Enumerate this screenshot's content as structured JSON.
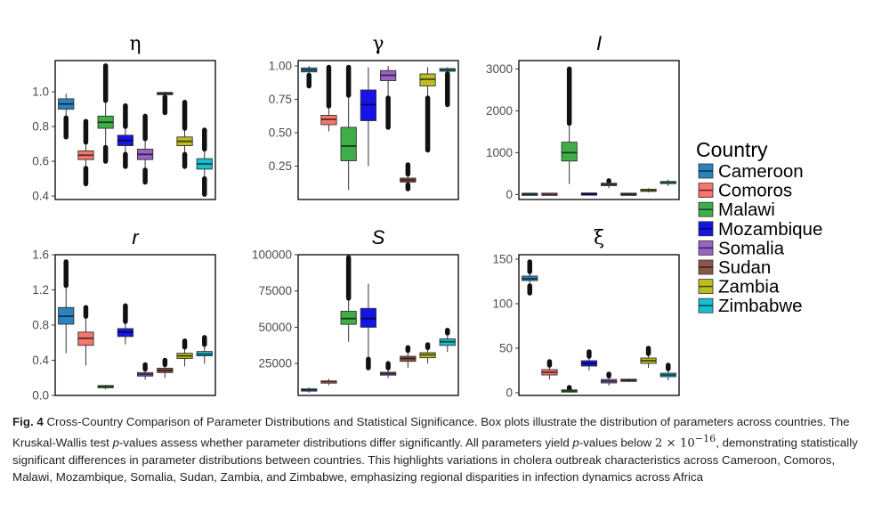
{
  "figure": {
    "legend": {
      "title": "Country",
      "entries": [
        {
          "name": "Cameroon",
          "color": "#2a83bf"
        },
        {
          "name": "Comoros",
          "color": "#f8766d"
        },
        {
          "name": "Malawi",
          "color": "#3fae49"
        },
        {
          "name": "Mozambique",
          "color": "#1414e6"
        },
        {
          "name": "Somalia",
          "color": "#9a63c6"
        },
        {
          "name": "Sudan",
          "color": "#8c564b"
        },
        {
          "name": "Zambia",
          "color": "#bcbd22"
        },
        {
          "name": "Zimbabwe",
          "color": "#17becf"
        }
      ]
    }
  },
  "chart_data": [
    {
      "type": "boxplot",
      "title": "η",
      "title_style": "serif-upright",
      "ylim": [
        0.38,
        1.18
      ],
      "ticks": [
        0.4,
        0.6,
        0.8,
        1.0
      ],
      "tick_labels": [
        "0.4",
        "0.6",
        "0.8",
        "1.0"
      ],
      "categories": [
        "Cameroon",
        "Comoros",
        "Malawi",
        "Mozambique",
        "Somalia",
        "Sudan",
        "Zambia",
        "Zimbabwe"
      ],
      "boxes": [
        {
          "min": 0.85,
          "q1": 0.9,
          "median": 0.93,
          "q3": 0.96,
          "max": 0.99,
          "out_low": 0.74,
          "out_high": null
        },
        {
          "min": 0.56,
          "q1": 0.61,
          "median": 0.635,
          "q3": 0.66,
          "max": 0.71,
          "out_low": 0.47,
          "out_high": 0.83
        },
        {
          "min": 0.68,
          "q1": 0.79,
          "median": 0.825,
          "q3": 0.86,
          "max": 0.95,
          "out_low": 0.6,
          "out_high": 1.15
        },
        {
          "min": 0.64,
          "q1": 0.69,
          "median": 0.72,
          "q3": 0.75,
          "max": 0.8,
          "out_low": 0.57,
          "out_high": 0.92
        },
        {
          "min": 0.55,
          "q1": 0.61,
          "median": 0.64,
          "q3": 0.67,
          "max": 0.73,
          "out_low": 0.48,
          "out_high": 0.86
        },
        {
          "min": 0.97,
          "q1": 0.985,
          "median": 0.99,
          "q3": 0.995,
          "max": 1.0,
          "out_low": 0.88,
          "out_high": null
        },
        {
          "min": 0.64,
          "q1": 0.69,
          "median": 0.715,
          "q3": 0.74,
          "max": 0.79,
          "out_low": 0.57,
          "out_high": 0.94
        },
        {
          "min": 0.5,
          "q1": 0.555,
          "median": 0.585,
          "q3": 0.615,
          "max": 0.67,
          "out_low": 0.41,
          "out_high": 0.78
        }
      ]
    },
    {
      "type": "boxplot",
      "title": "γ",
      "title_style": "serif-upright",
      "ylim": [
        0.0,
        1.04
      ],
      "ticks": [
        0.25,
        0.5,
        0.75,
        1.0
      ],
      "tick_labels": [
        "0.25",
        "0.50",
        "0.75",
        "1.00"
      ],
      "categories": [
        "Cameroon",
        "Comoros",
        "Malawi",
        "Mozambique",
        "Somalia",
        "Sudan",
        "Zambia",
        "Zimbabwe"
      ],
      "boxes": [
        {
          "min": 0.93,
          "q1": 0.955,
          "median": 0.97,
          "q3": 0.985,
          "max": 1.0,
          "out_low": 0.85,
          "out_high": null
        },
        {
          "min": 0.51,
          "q1": 0.56,
          "median": 0.6,
          "q3": 0.63,
          "max": 0.7,
          "out_low": null,
          "out_high": 0.99
        },
        {
          "min": 0.07,
          "q1": 0.29,
          "median": 0.4,
          "q3": 0.54,
          "max": 0.78,
          "out_low": null,
          "out_high": 0.99
        },
        {
          "min": 0.25,
          "q1": 0.59,
          "median": 0.71,
          "q3": 0.82,
          "max": 0.99,
          "out_low": null,
          "out_high": null
        },
        {
          "min": 0.76,
          "q1": 0.89,
          "median": 0.93,
          "q3": 0.965,
          "max": 1.0,
          "out_low": 0.54,
          "out_high": null
        },
        {
          "min": 0.11,
          "q1": 0.13,
          "median": 0.145,
          "q3": 0.16,
          "max": 0.19,
          "out_low": 0.08,
          "out_high": 0.26
        },
        {
          "min": 0.76,
          "q1": 0.85,
          "median": 0.9,
          "q3": 0.94,
          "max": 0.99,
          "out_low": 0.37,
          "out_high": null
        },
        {
          "min": 0.94,
          "q1": 0.96,
          "median": 0.97,
          "q3": 0.98,
          "max": 0.99,
          "out_low": 0.71,
          "out_high": null
        }
      ]
    },
    {
      "type": "boxplot",
      "title": "I",
      "title_style": "sans-italic",
      "ylim": [
        -120,
        3200
      ],
      "ticks": [
        0,
        1000,
        2000,
        3000
      ],
      "tick_labels": [
        "0",
        "1000",
        "2000",
        "3000"
      ],
      "categories": [
        "Cameroon",
        "Comoros",
        "Malawi",
        "Mozambique",
        "Somalia",
        "Sudan",
        "Zambia",
        "Zimbabwe"
      ],
      "boxes": [
        {
          "min": 0,
          "q1": 2,
          "median": 5,
          "q3": 8,
          "max": 15,
          "out_low": null,
          "out_high": null
        },
        {
          "min": 0,
          "q1": 2,
          "median": 5,
          "q3": 8,
          "max": 15,
          "out_low": null,
          "out_high": null
        },
        {
          "min": 250,
          "q1": 800,
          "median": 1000,
          "q3": 1250,
          "max": 1700,
          "out_low": null,
          "out_high": 3000
        },
        {
          "min": 0,
          "q1": 5,
          "median": 10,
          "q3": 15,
          "max": 30,
          "out_low": null,
          "out_high": null
        },
        {
          "min": 150,
          "q1": 210,
          "median": 240,
          "q3": 270,
          "max": 320,
          "out_low": null,
          "out_high": 330
        },
        {
          "min": 0,
          "q1": 2,
          "median": 5,
          "q3": 8,
          "max": 15,
          "out_low": null,
          "out_high": null
        },
        {
          "min": 50,
          "q1": 80,
          "median": 100,
          "q3": 120,
          "max": 150,
          "out_low": null,
          "out_high": null
        },
        {
          "min": 200,
          "q1": 260,
          "median": 290,
          "q3": 310,
          "max": 360,
          "out_low": null,
          "out_high": null
        }
      ]
    },
    {
      "type": "boxplot",
      "title": "r",
      "title_style": "sans-italic",
      "ylim": [
        0.0,
        1.6
      ],
      "ticks": [
        0.0,
        0.4,
        0.8,
        1.2,
        1.6
      ],
      "tick_labels": [
        "0.0",
        "0.4",
        "0.8",
        "1.2",
        "1.6"
      ],
      "categories": [
        "Cameroon",
        "Comoros",
        "Malawi",
        "Mozambique",
        "Somalia",
        "Sudan",
        "Zambia",
        "Zimbabwe"
      ],
      "boxes": [
        {
          "min": 0.48,
          "q1": 0.81,
          "median": 0.9,
          "q3": 1.0,
          "max": 1.25,
          "out_low": null,
          "out_high": 1.52
        },
        {
          "min": 0.34,
          "q1": 0.57,
          "median": 0.65,
          "q3": 0.72,
          "max": 0.9,
          "out_low": null,
          "out_high": 1.0
        },
        {
          "min": 0.07,
          "q1": 0.09,
          "median": 0.1,
          "q3": 0.11,
          "max": 0.12,
          "out_low": null,
          "out_high": null
        },
        {
          "min": 0.58,
          "q1": 0.67,
          "median": 0.72,
          "q3": 0.76,
          "max": 0.84,
          "out_low": null,
          "out_high": 1.02
        },
        {
          "min": 0.18,
          "q1": 0.22,
          "median": 0.24,
          "q3": 0.26,
          "max": 0.3,
          "out_low": null,
          "out_high": 0.35
        },
        {
          "min": 0.2,
          "q1": 0.26,
          "median": 0.285,
          "q3": 0.31,
          "max": 0.35,
          "out_low": null,
          "out_high": 0.4
        },
        {
          "min": 0.33,
          "q1": 0.42,
          "median": 0.45,
          "q3": 0.48,
          "max": 0.55,
          "out_low": null,
          "out_high": 0.62
        },
        {
          "min": 0.36,
          "q1": 0.45,
          "median": 0.47,
          "q3": 0.5,
          "max": 0.58,
          "out_low": null,
          "out_high": 0.66
        }
      ]
    },
    {
      "type": "boxplot",
      "title": "S",
      "title_style": "sans-italic",
      "ylim": [
        3000,
        100000
      ],
      "ticks": [
        25000,
        50000,
        75000,
        100000
      ],
      "tick_labels": [
        "25000",
        "50000",
        "75000",
        "100000"
      ],
      "categories": [
        "Cameroon",
        "Comoros",
        "Malawi",
        "Mozambique",
        "Somalia",
        "Sudan",
        "Zambia",
        "Zimbabwe"
      ],
      "boxes": [
        {
          "min": 5000,
          "q1": 6000,
          "median": 6800,
          "q3": 7500,
          "max": 8500,
          "out_low": null,
          "out_high": null
        },
        {
          "min": 10000,
          "q1": 11500,
          "median": 12500,
          "q3": 13000,
          "max": 14500,
          "out_low": null,
          "out_high": null
        },
        {
          "min": 40000,
          "q1": 52000,
          "median": 56000,
          "q3": 61000,
          "max": 70000,
          "out_low": null,
          "out_high": 98000
        },
        {
          "min": 28000,
          "q1": 50000,
          "median": 56000,
          "q3": 63000,
          "max": 80000,
          "out_low": 22000,
          "out_high": null
        },
        {
          "min": 15000,
          "q1": 17000,
          "median": 18000,
          "q3": 19000,
          "max": 22000,
          "out_low": null,
          "out_high": 25000
        },
        {
          "min": 22000,
          "q1": 26500,
          "median": 28500,
          "q3": 30000,
          "max": 34000,
          "out_low": null,
          "out_high": 36000
        },
        {
          "min": 25000,
          "q1": 29000,
          "median": 31000,
          "q3": 32500,
          "max": 36000,
          "out_low": null,
          "out_high": 38000
        },
        {
          "min": 33000,
          "q1": 37500,
          "median": 40000,
          "q3": 42000,
          "max": 46000,
          "out_low": null,
          "out_high": 48000
        }
      ]
    },
    {
      "type": "boxplot",
      "title": "ξ",
      "title_style": "serif-upright",
      "ylim": [
        -3,
        155
      ],
      "ticks": [
        0,
        50,
        100,
        150
      ],
      "tick_labels": [
        "0",
        "50",
        "100",
        "150"
      ],
      "categories": [
        "Cameroon",
        "Comoros",
        "Malawi",
        "Mozambique",
        "Somalia",
        "Sudan",
        "Zambia",
        "Zimbabwe"
      ],
      "boxes": [
        {
          "min": 120,
          "q1": 126,
          "median": 128,
          "q3": 131,
          "max": 136,
          "out_low": 112,
          "out_high": 147
        },
        {
          "min": 15,
          "q1": 20,
          "median": 23,
          "q3": 26,
          "max": 31,
          "out_low": null,
          "out_high": 35
        },
        {
          "min": 0,
          "q1": 1,
          "median": 2,
          "q3": 3,
          "max": 4,
          "out_low": null,
          "out_high": 6
        },
        {
          "min": 25,
          "q1": 30,
          "median": 33,
          "q3": 36,
          "max": 41,
          "out_low": null,
          "out_high": 46
        },
        {
          "min": 8,
          "q1": 11,
          "median": 13,
          "q3": 15,
          "max": 19,
          "out_low": null,
          "out_high": 21
        },
        {
          "min": 12,
          "q1": 13,
          "median": 14,
          "q3": 15,
          "max": 16,
          "out_low": null,
          "out_high": null
        },
        {
          "min": 28,
          "q1": 33,
          "median": 36,
          "q3": 39,
          "max": 44,
          "out_low": null,
          "out_high": 50
        },
        {
          "min": 14,
          "q1": 18,
          "median": 20,
          "q3": 22,
          "max": 27,
          "out_low": null,
          "out_high": 31
        }
      ]
    }
  ],
  "caption": {
    "label": "Fig. 4",
    "p1": "Cross-Country Comparison of Parameter Distributions and Statistical Significance. Box plots illustrate the distribution of parameters across countries. The Kruskal-Wallis test ",
    "pvalue_word": "p",
    "p2": "-values assess whether parameter distributions differ significantly. All parameters yield ",
    "p3": "-values below ",
    "threshold": "2 × 10",
    "exponent": "−16",
    "p4": ", demonstrating statistically significant differences in parameter distributions between countries. This highlights variations in cholera outbreak characteristics across Cameroon, Comoros, Malawi, Mozambique, Somalia, Sudan, Zambia, and Zimbabwe, emphasizing regional disparities in infection dynamics across Africa"
  }
}
